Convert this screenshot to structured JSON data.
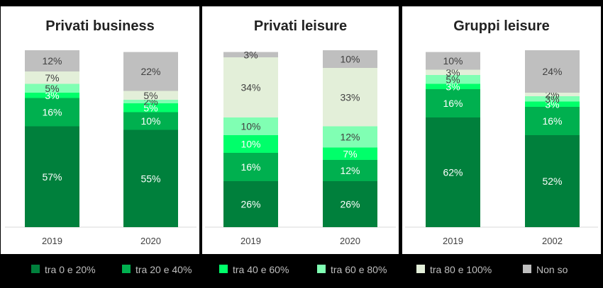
{
  "colors": [
    "#00803c",
    "#00b04f",
    "#00ff6a",
    "#80ffb3",
    "#e3efd9",
    "#bfbfbf"
  ],
  "legend": [
    "tra 0 e 20%",
    "tra 20 e 40%",
    "tra 40 e 60%",
    "tra 60 e 80%",
    "tra 80 e 100%",
    "Non so"
  ],
  "chart_data": [
    {
      "type": "bar",
      "stacked": true,
      "title": "Privati business",
      "categories": [
        "2019",
        "2020"
      ],
      "series": [
        {
          "name": "tra 0 e 20%",
          "values": [
            57,
            55
          ]
        },
        {
          "name": "tra 20 e 40%",
          "values": [
            16,
            10
          ]
        },
        {
          "name": "tra 40 e 60%",
          "values": [
            3,
            5
          ]
        },
        {
          "name": "tra 60 e 80%",
          "values": [
            5,
            2
          ]
        },
        {
          "name": "tra 80 e 100%",
          "values": [
            7,
            5
          ]
        },
        {
          "name": "Non so",
          "values": [
            12,
            22
          ]
        }
      ]
    },
    {
      "type": "bar",
      "stacked": true,
      "title": "Privati leisure",
      "categories": [
        "2019",
        "2020"
      ],
      "series": [
        {
          "name": "tra 0 e 20%",
          "values": [
            26,
            26
          ]
        },
        {
          "name": "tra 20 e 40%",
          "values": [
            16,
            12
          ]
        },
        {
          "name": "tra 40 e 60%",
          "values": [
            10,
            7
          ]
        },
        {
          "name": "tra 60 e 80%",
          "values": [
            10,
            12
          ]
        },
        {
          "name": "tra 80 e 100%",
          "values": [
            34,
            33
          ]
        },
        {
          "name": "Non so",
          "values": [
            3,
            10
          ]
        }
      ]
    },
    {
      "type": "bar",
      "stacked": true,
      "title": "Gruppi leisure",
      "categories": [
        "2019",
        "2002"
      ],
      "series": [
        {
          "name": "tra 0 e 20%",
          "values": [
            62,
            52
          ]
        },
        {
          "name": "tra 20 e 40%",
          "values": [
            16,
            16
          ]
        },
        {
          "name": "tra 40 e 60%",
          "values": [
            3,
            3
          ]
        },
        {
          "name": "tra 60 e 80%",
          "values": [
            5,
            3
          ]
        },
        {
          "name": "tra 80 e 100%",
          "values": [
            3,
            2
          ]
        },
        {
          "name": "Non so",
          "values": [
            10,
            24
          ]
        }
      ]
    }
  ]
}
